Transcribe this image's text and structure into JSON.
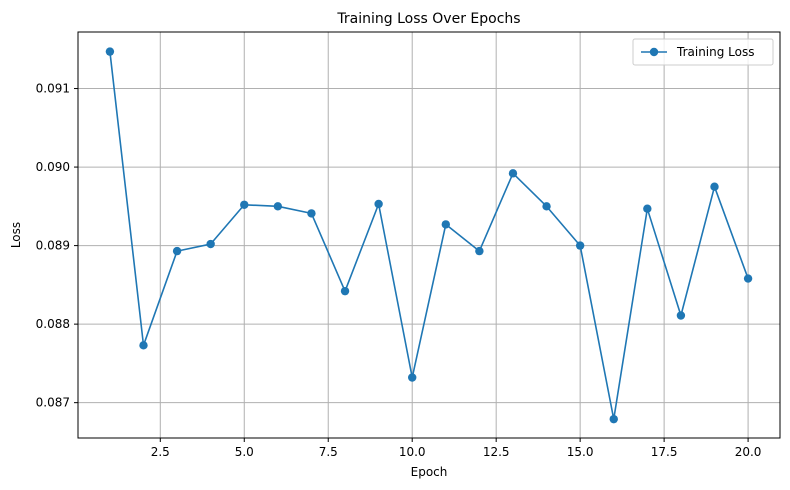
{
  "chart_data": {
    "type": "line",
    "title": "Training Loss Over Epochs",
    "xlabel": "Epoch",
    "ylabel": "Loss",
    "xlim": [
      0.05,
      20.95
    ],
    "ylim": [
      0.08655,
      0.09172
    ],
    "xticks": [
      2.5,
      5.0,
      7.5,
      10.0,
      12.5,
      15.0,
      17.5,
      20.0
    ],
    "xtick_labels": [
      "2.5",
      "5.0",
      "7.5",
      "10.0",
      "12.5",
      "15.0",
      "17.5",
      "20.0"
    ],
    "yticks": [
      0.087,
      0.088,
      0.089,
      0.09,
      0.091
    ],
    "ytick_labels": [
      "0.087",
      "0.088",
      "0.089",
      "0.090",
      "0.091"
    ],
    "grid": true,
    "legend_position": "top-right",
    "series": [
      {
        "name": "Training Loss",
        "color": "#1f77b4",
        "marker": "circle",
        "x": [
          1,
          2,
          3,
          4,
          5,
          6,
          7,
          8,
          9,
          10,
          11,
          12,
          13,
          14,
          15,
          16,
          17,
          18,
          19,
          20
        ],
        "y": [
          0.09147,
          0.08773,
          0.08893,
          0.08902,
          0.08952,
          0.0895,
          0.08941,
          0.08842,
          0.08953,
          0.08732,
          0.08927,
          0.08893,
          0.08992,
          0.0895,
          0.089,
          0.08679,
          0.08947,
          0.08811,
          0.08975,
          0.08858
        ]
      }
    ]
  }
}
